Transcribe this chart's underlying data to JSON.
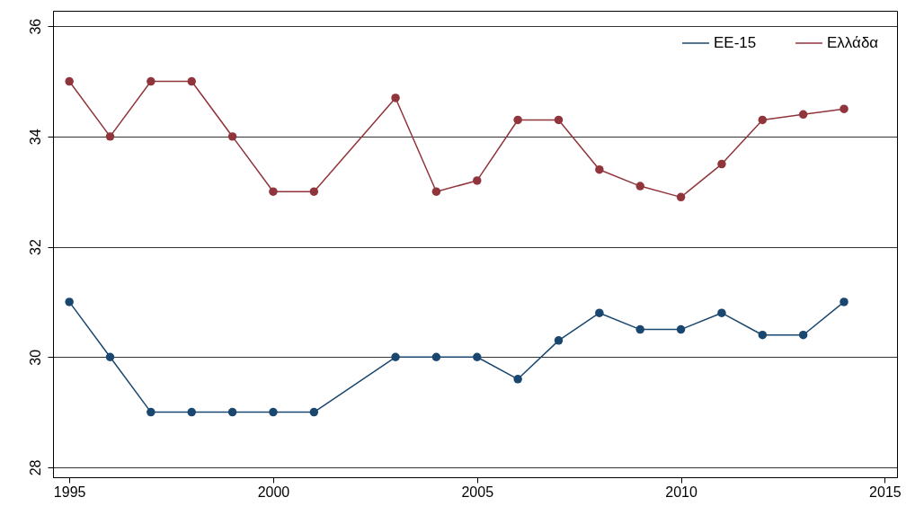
{
  "chart_data": {
    "type": "line",
    "xlim": [
      1994.6,
      2015.3
    ],
    "ylim": [
      27.82,
      36.28
    ],
    "xticks": [
      1995,
      2000,
      2005,
      2010,
      2015
    ],
    "yticks": [
      28,
      30,
      32,
      34,
      36
    ],
    "grid": "y",
    "legend": "top right",
    "marker": "circle",
    "line_style": "solid",
    "series": [
      {
        "name": "ΕΕ-15",
        "color": "#1a476f",
        "x": [
          1995,
          1996,
          1997,
          1998,
          1999,
          2000,
          2001,
          2003,
          2004,
          2005,
          2006,
          2007,
          2008,
          2009,
          2010,
          2011,
          2012,
          2013,
          2014
        ],
        "values": [
          31,
          30,
          29,
          29,
          29,
          29,
          29,
          30,
          30,
          30,
          29.6,
          30.3,
          30.8,
          30.5,
          30.5,
          30.8,
          30.4,
          30.4,
          31
        ]
      },
      {
        "name": "Ελλάδα",
        "color": "#90353b",
        "x": [
          1995,
          1996,
          1997,
          1998,
          1999,
          2000,
          2001,
          2003,
          2004,
          2005,
          2006,
          2007,
          2008,
          2009,
          2010,
          2011,
          2012,
          2013,
          2014
        ],
        "values": [
          35,
          34,
          35,
          35,
          34,
          33,
          33,
          34.7,
          33,
          33.2,
          34.3,
          34.3,
          33.4,
          33.1,
          32.9,
          33.5,
          34.3,
          34.4,
          34.5
        ]
      }
    ]
  }
}
